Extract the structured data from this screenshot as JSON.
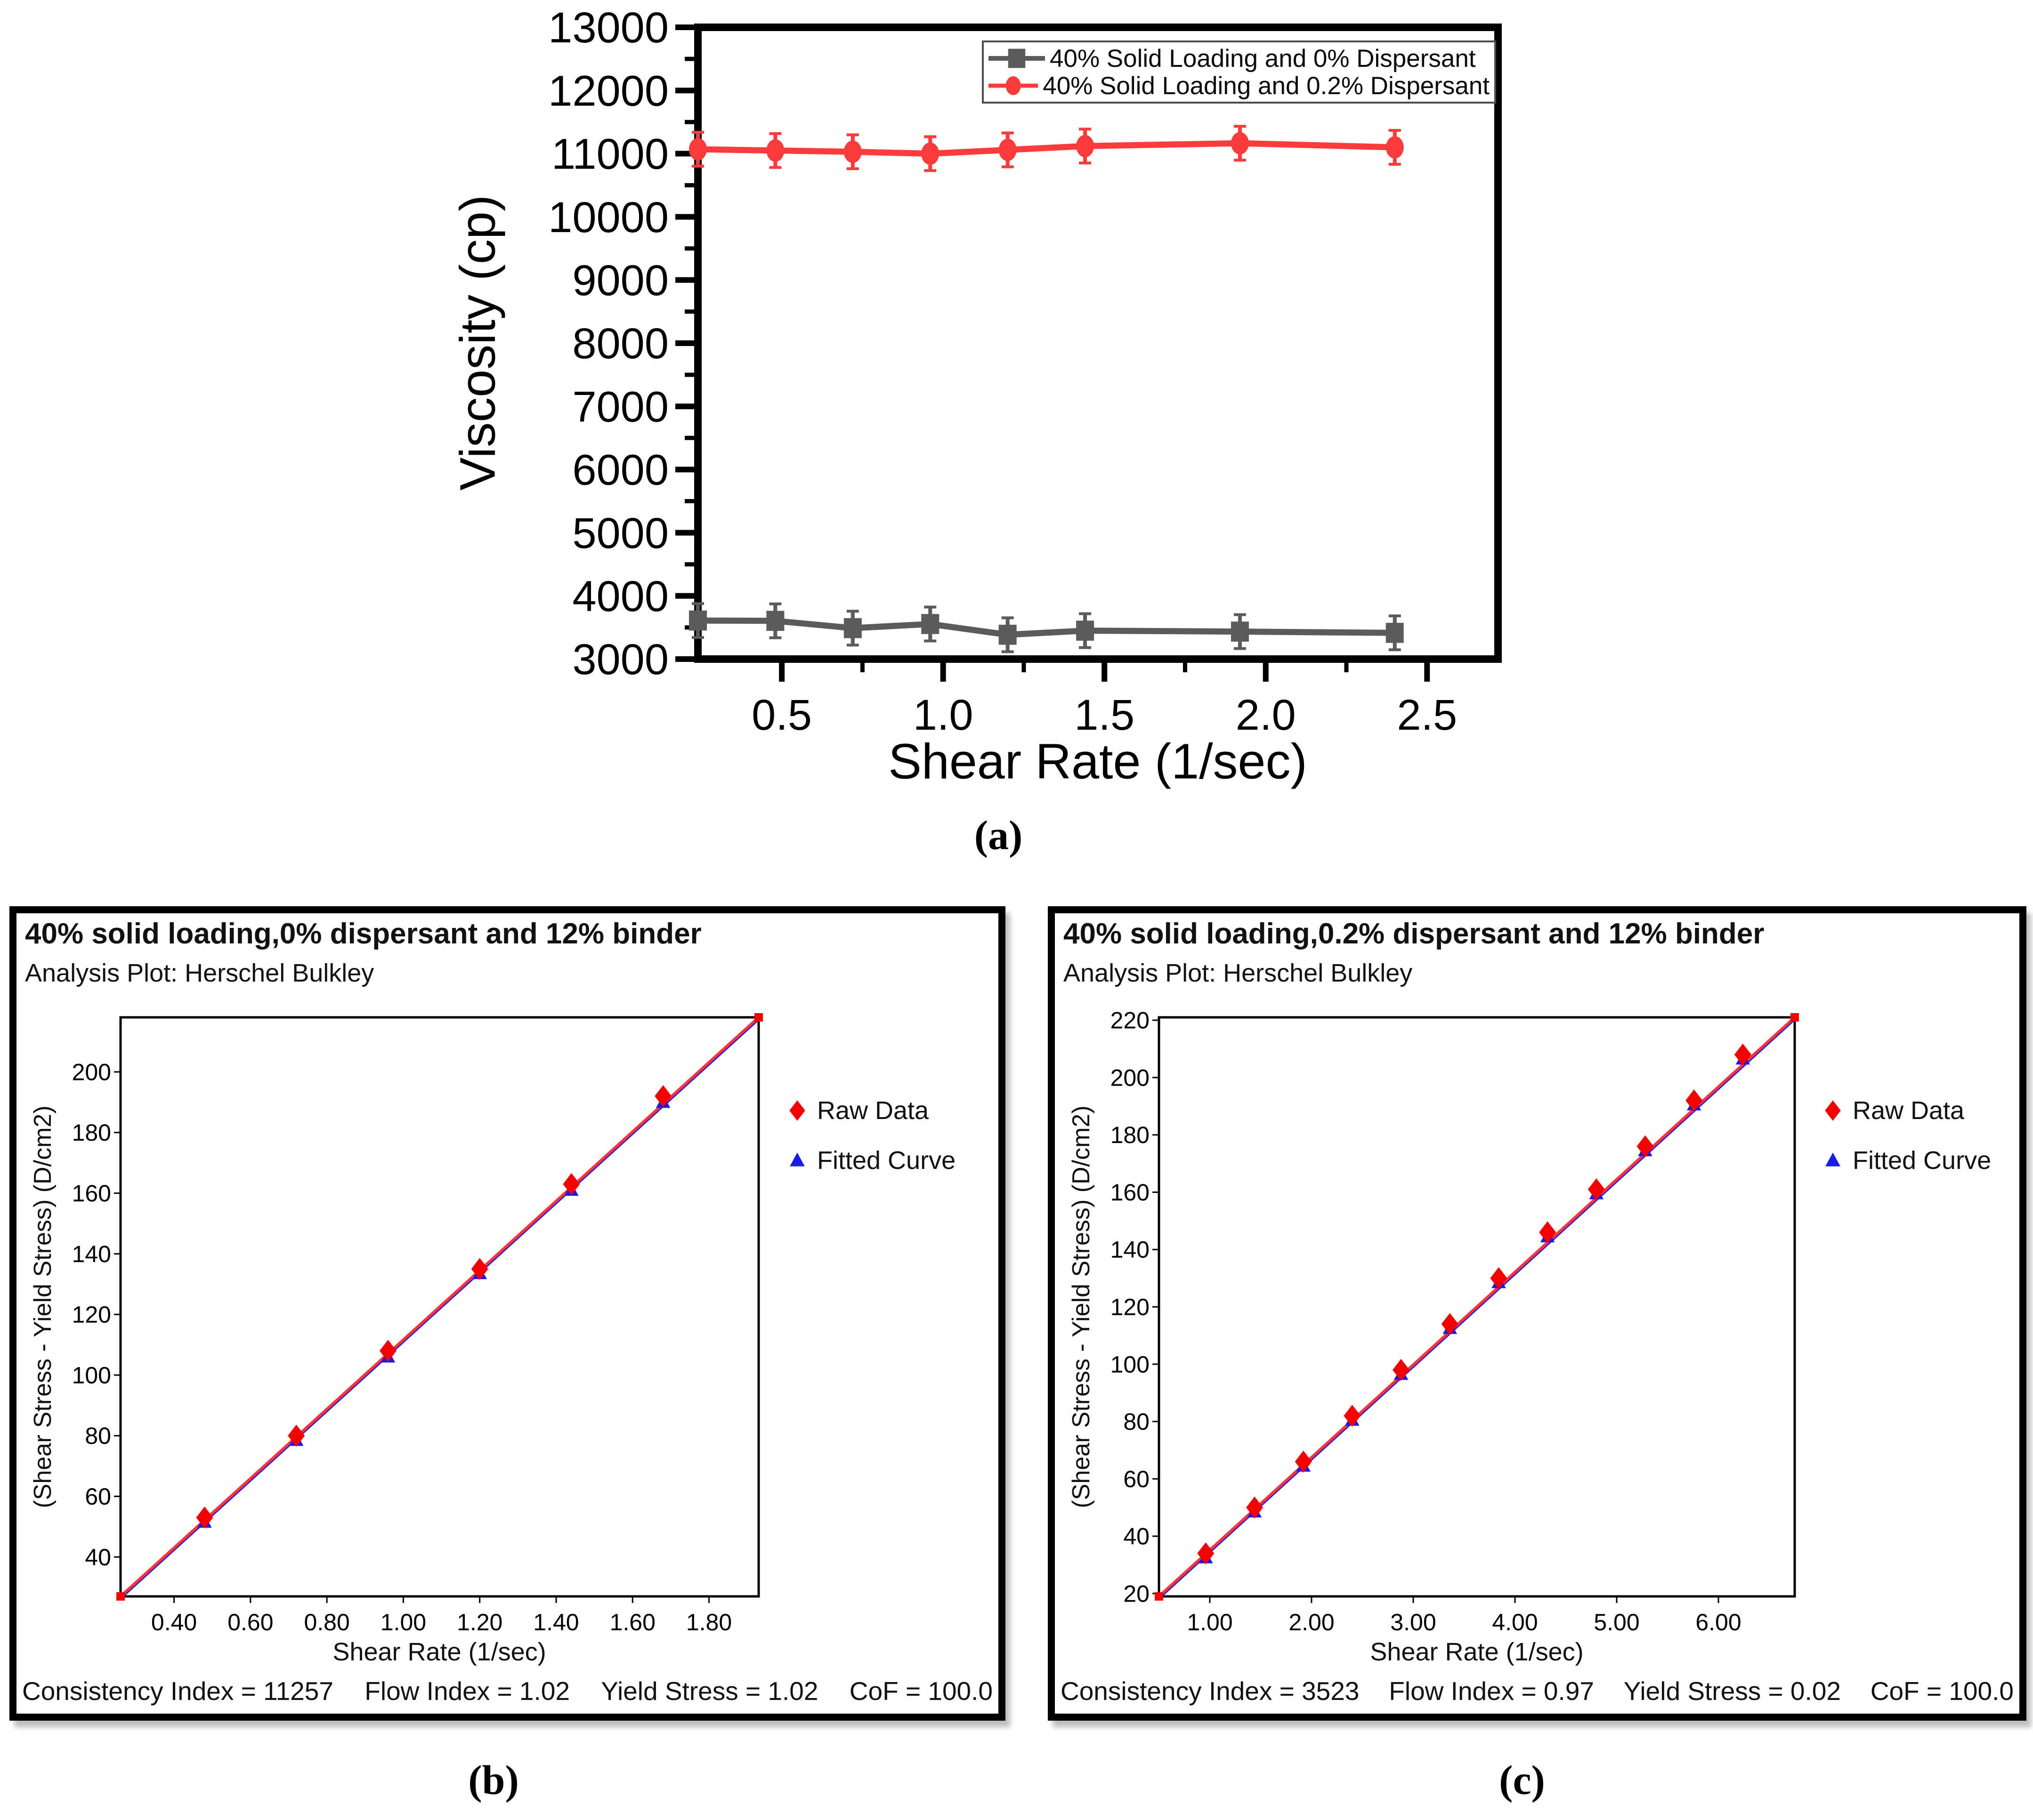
{
  "figure": {
    "panel_labels": {
      "a": "(a)",
      "b": "(b)",
      "c": "(c)"
    }
  },
  "chart_data": [
    {
      "id": "a",
      "type": "line",
      "title": "",
      "xlabel": "Shear Rate (1/sec)",
      "ylabel": "Viscosity (cp)",
      "xlim": [
        0.24,
        2.72
      ],
      "ylim": [
        3000,
        13000
      ],
      "grid": false,
      "legend_position": "top-right",
      "x_ticks": {
        "values": [
          0.5,
          1.0,
          1.5,
          2.0,
          2.5
        ],
        "labels": [
          "0.5",
          "1.0",
          "1.5",
          "2.0",
          "2.5"
        ],
        "minor": [
          0.75,
          1.25,
          1.75,
          2.25
        ]
      },
      "y_ticks": {
        "values": [
          3000,
          4000,
          5000,
          6000,
          7000,
          8000,
          9000,
          10000,
          11000,
          12000,
          13000
        ],
        "labels": [
          "3000",
          "4000",
          "5000",
          "6000",
          "7000",
          "8000",
          "9000",
          "10000",
          "11000",
          "12000",
          "13000"
        ],
        "minor": [
          3500,
          4500,
          5500,
          6500,
          7500,
          8500,
          9500,
          10500,
          11500,
          12500
        ]
      },
      "series": [
        {
          "name": "40% Solid Loading and 0% Dispersant",
          "color": "#5b5b5b",
          "marker": "square",
          "x": [
            0.24,
            0.48,
            0.72,
            0.96,
            1.2,
            1.44,
            1.92,
            2.4
          ],
          "y": [
            3610,
            3605,
            3490,
            3555,
            3385,
            3450,
            3435,
            3415
          ]
        },
        {
          "name": "40% Solid Loading and 0.2% Dispersant",
          "color": "#fa3b3b",
          "marker": "circle",
          "x": [
            0.24,
            0.48,
            0.72,
            0.96,
            1.2,
            1.44,
            1.92,
            2.4
          ],
          "y": [
            11070,
            11050,
            11030,
            11000,
            11060,
            11120,
            11165,
            11100
          ]
        }
      ]
    },
    {
      "id": "b",
      "type": "scatter",
      "title": "40% solid loading,0% dispersant and 12% binder",
      "subtitle": "Analysis Plot: Herschel Bulkley",
      "xlabel": "Shear Rate (1/sec)",
      "ylabel": "(Shear Stress - Yield Stress) (D/cm2)",
      "xlim": [
        0.26,
        1.93
      ],
      "ylim": [
        27,
        218
      ],
      "grid": false,
      "legend_position": "right",
      "x_ticks": {
        "values": [
          0.4,
          0.6,
          0.8,
          1.0,
          1.2,
          1.4,
          1.6,
          1.8
        ],
        "labels": [
          "0.40",
          "0.60",
          "0.80",
          "1.00",
          "1.20",
          "1.40",
          "1.60",
          "1.80"
        ]
      },
      "y_ticks": {
        "values": [
          40,
          60,
          80,
          100,
          120,
          140,
          160,
          180,
          200
        ],
        "labels": [
          "40",
          "60",
          "80",
          "100",
          "120",
          "140",
          "160",
          "180",
          "200"
        ]
      },
      "fit_line": {
        "color": "#ff3333",
        "x": [
          0.26,
          1.93
        ],
        "y": [
          27,
          218
        ]
      },
      "series": [
        {
          "name": "Raw Data",
          "color": "#f50000",
          "marker": "diamond",
          "x": [
            0.48,
            0.72,
            0.96,
            1.2,
            1.44,
            1.68
          ],
          "y": [
            53,
            80,
            108,
            135,
            163,
            192
          ]
        },
        {
          "name": "Fitted Curve",
          "color": "#1a1aee",
          "marker": "triangle",
          "x": [
            0.48,
            0.72,
            0.96,
            1.2,
            1.44,
            1.68
          ],
          "y": [
            51.5,
            78.5,
            106,
            133.5,
            161,
            190
          ]
        }
      ],
      "stats": [
        "Consistency Index = 11257",
        "Flow Index = 1.02",
        "Yield Stress = 1.02",
        "CoF = 100.0"
      ]
    },
    {
      "id": "c",
      "type": "scatter",
      "title": "40% solid loading,0.2% dispersant and 12% binder",
      "subtitle": "Analysis Plot: Herschel Bulkley",
      "xlabel": "Shear Rate (1/sec)",
      "ylabel": "(Shear Stress - Yield Stress) (D/cm2)",
      "xlim": [
        0.5,
        6.75
      ],
      "ylim": [
        19,
        221
      ],
      "grid": false,
      "legend_position": "right",
      "x_ticks": {
        "values": [
          1.0,
          2.0,
          3.0,
          4.0,
          5.0,
          6.0
        ],
        "labels": [
          "1.00",
          "2.00",
          "3.00",
          "4.00",
          "5.00",
          "6.00"
        ]
      },
      "y_ticks": {
        "values": [
          20,
          40,
          60,
          80,
          100,
          120,
          140,
          160,
          180,
          200,
          220
        ],
        "labels": [
          "20",
          "40",
          "60",
          "80",
          "100",
          "120",
          "140",
          "160",
          "180",
          "200",
          "220"
        ]
      },
      "fit_line": {
        "color": "#ff3333",
        "x": [
          0.5,
          6.75
        ],
        "y": [
          19,
          221
        ]
      },
      "series": [
        {
          "name": "Raw Data",
          "color": "#f50000",
          "marker": "diamond",
          "x": [
            0.96,
            1.44,
            1.92,
            2.4,
            2.88,
            3.36,
            3.84,
            4.32,
            4.8,
            5.28,
            5.76,
            6.24
          ],
          "y": [
            34,
            50,
            66,
            82,
            98,
            114,
            130,
            146,
            161,
            176,
            192,
            208
          ]
        },
        {
          "name": "Fitted Curve",
          "color": "#1a1aee",
          "marker": "triangle",
          "x": [
            0.96,
            1.44,
            1.92,
            2.4,
            2.88,
            3.36,
            3.84,
            4.32,
            4.8,
            5.28,
            5.76,
            6.24
          ],
          "y": [
            32.5,
            48.5,
            64.5,
            80.5,
            96.5,
            112.5,
            128.5,
            144.5,
            159.5,
            174.5,
            190.5,
            206.5
          ]
        }
      ],
      "stats": [
        "Consistency Index = 3523",
        "Flow Index = 0.97",
        "Yield Stress = 0.02",
        "CoF = 100.0"
      ]
    }
  ]
}
